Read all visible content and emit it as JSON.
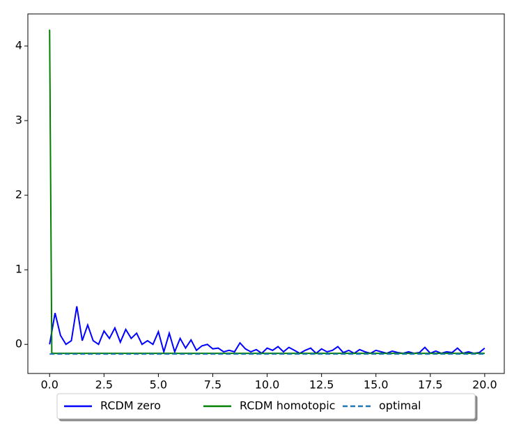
{
  "chart_data": {
    "type": "line",
    "xlim": [
      -1,
      20.9
    ],
    "ylim": [
      -0.39,
      4.43
    ],
    "xticks": [
      {
        "value": 0,
        "label": "0.0"
      },
      2.5,
      {
        "value": 5,
        "label": "5.0"
      },
      7.5,
      {
        "value": 10,
        "label": "10.0"
      },
      12.5,
      {
        "value": 15,
        "label": "15.0"
      },
      17.5,
      {
        "value": 20,
        "label": "20.0"
      }
    ],
    "yticks": [
      0,
      1,
      2,
      3,
      4
    ],
    "grid": false,
    "legend": "bottom",
    "series": [
      {
        "name": "RCDM zero",
        "color": "#0000ff",
        "linestyle": "solid",
        "x": [
          0,
          0.25,
          0.5,
          0.75,
          1,
          1.25,
          1.5,
          1.75,
          2,
          2.25,
          2.5,
          2.75,
          3,
          3.25,
          3.5,
          3.75,
          4,
          4.25,
          4.5,
          4.75,
          5,
          5.25,
          5.5,
          5.75,
          6,
          6.25,
          6.5,
          6.75,
          7,
          7.25,
          7.5,
          7.75,
          8,
          8.25,
          8.5,
          8.75,
          9,
          9.25,
          9.5,
          9.75,
          10,
          10.25,
          10.5,
          10.75,
          11,
          11.25,
          11.5,
          11.75,
          12,
          12.25,
          12.5,
          12.75,
          13,
          13.25,
          13.5,
          13.75,
          14,
          14.25,
          14.5,
          14.75,
          15,
          15.25,
          15.5,
          15.75,
          16,
          16.25,
          16.5,
          16.75,
          17,
          17.25,
          17.5,
          17.75,
          18,
          18.25,
          18.5,
          18.75,
          19,
          19.25,
          19.5,
          19.75,
          20
        ],
        "values": [
          0.0,
          0.42,
          0.12,
          0.0,
          0.05,
          0.51,
          0.05,
          0.26,
          0.05,
          0.0,
          0.18,
          0.08,
          0.22,
          0.03,
          0.2,
          0.08,
          0.15,
          0.0,
          0.05,
          0.0,
          0.17,
          -0.1,
          0.15,
          -0.1,
          0.08,
          -0.05,
          0.06,
          -0.08,
          -0.02,
          0.0,
          -0.06,
          -0.05,
          -0.1,
          -0.08,
          -0.1,
          0.02,
          -0.06,
          -0.1,
          -0.07,
          -0.12,
          -0.05,
          -0.08,
          -0.03,
          -0.1,
          -0.04,
          -0.08,
          -0.12,
          -0.08,
          -0.05,
          -0.12,
          -0.06,
          -0.1,
          -0.08,
          -0.03,
          -0.11,
          -0.08,
          -0.12,
          -0.07,
          -0.1,
          -0.12,
          -0.08,
          -0.1,
          -0.12,
          -0.09,
          -0.11,
          -0.12,
          -0.1,
          -0.12,
          -0.11,
          -0.04,
          -0.12,
          -0.09,
          -0.12,
          -0.1,
          -0.11,
          -0.05,
          -0.12,
          -0.1,
          -0.12,
          -0.11,
          -0.05
        ]
      },
      {
        "name": "RCDM homotopic",
        "color": "#008000",
        "linestyle": "solid",
        "x": [
          0,
          0.1,
          20
        ],
        "values": [
          4.22,
          -0.12,
          -0.12
        ]
      },
      {
        "name": "optimal",
        "color": "#1f77b4",
        "linestyle": "dashed",
        "x": [
          0,
          20
        ],
        "values": [
          -0.13,
          -0.13
        ]
      }
    ]
  }
}
